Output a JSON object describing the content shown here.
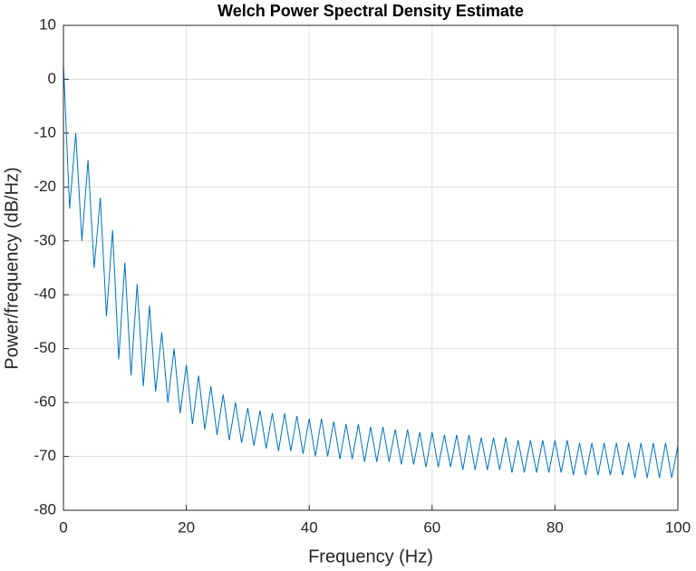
{
  "chart_data": {
    "type": "line",
    "title": "Welch Power Spectral Density Estimate",
    "x_label": "Frequency (Hz)",
    "y_label": "Power/frequency (dB/Hz)",
    "x": [
      0,
      1,
      2,
      3,
      4,
      5,
      6,
      7,
      8,
      9,
      10,
      11,
      12,
      13,
      14,
      15,
      16,
      17,
      18,
      19,
      20,
      21,
      22,
      23,
      24,
      25,
      26,
      27,
      28,
      29,
      30,
      31,
      32,
      33,
      34,
      35,
      36,
      37,
      38,
      39,
      40,
      41,
      42,
      43,
      44,
      45,
      46,
      47,
      48,
      49,
      50,
      51,
      52,
      53,
      54,
      55,
      56,
      57,
      58,
      59,
      60,
      61,
      62,
      63,
      64,
      65,
      66,
      67,
      68,
      69,
      70,
      71,
      72,
      73,
      74,
      75,
      76,
      77,
      78,
      79,
      80,
      81,
      82,
      83,
      84,
      85,
      86,
      87,
      88,
      89,
      90,
      91,
      92,
      93,
      94,
      95,
      96,
      97,
      98,
      99,
      100
    ],
    "series": [
      {
        "color": "#0072bd",
        "values": [
          3,
          -24,
          -10,
          -30,
          -15,
          -35,
          -22,
          -44,
          -28,
          -52,
          -34,
          -55,
          -38,
          -57,
          -42,
          -58,
          -47,
          -60,
          -50,
          -62,
          -53,
          -64,
          -55,
          -65,
          -57,
          -66,
          -58.5,
          -67,
          -60,
          -67.5,
          -61,
          -68,
          -61.5,
          -68.5,
          -62,
          -69,
          -62,
          -69,
          -62.5,
          -69.5,
          -63,
          -70,
          -63,
          -70,
          -63.5,
          -70.5,
          -64,
          -70.5,
          -64,
          -71,
          -64.5,
          -71,
          -64.5,
          -71,
          -65,
          -71.5,
          -65,
          -71.5,
          -65.5,
          -72,
          -65.5,
          -72,
          -66,
          -72,
          -66,
          -72.5,
          -66,
          -72.5,
          -66.5,
          -72.5,
          -66.5,
          -72.5,
          -66.5,
          -73,
          -67,
          -73,
          -67,
          -73,
          -67,
          -73,
          -67,
          -73,
          -67,
          -73.5,
          -67.5,
          -73.5,
          -67.5,
          -73.5,
          -67.5,
          -73.5,
          -67.5,
          -73.5,
          -67.5,
          -74,
          -67.5,
          -74,
          -67.5,
          -74,
          -67.5,
          -74,
          -68
        ]
      }
    ],
    "xlim": [
      0,
      100
    ],
    "xticks": [
      0,
      20,
      40,
      60,
      80,
      100
    ],
    "ylim": [
      -80,
      10
    ],
    "yticks": [
      -80,
      -70,
      -60,
      -50,
      -40,
      -30,
      -20,
      -10,
      0,
      10
    ],
    "grid": true
  }
}
